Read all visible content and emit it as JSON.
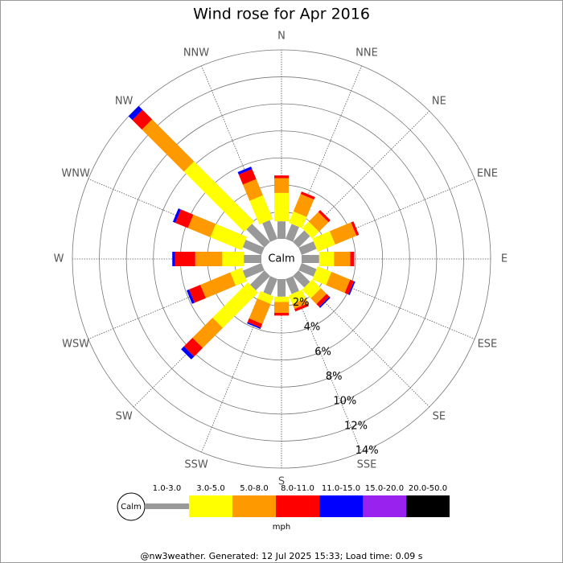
{
  "chart_data": {
    "type": "windrose",
    "title": "Wind rose for Apr 2016",
    "categories": [
      "N",
      "NNE",
      "NE",
      "ENE",
      "E",
      "ESE",
      "SE",
      "SSE",
      "S",
      "SSW",
      "SW",
      "WSW",
      "W",
      "WNW",
      "NW",
      "NNW"
    ],
    "center_label": "Calm",
    "rlim": [
      0,
      14
    ],
    "rticks": [
      {
        "value": 2,
        "label": "2%"
      },
      {
        "value": 4,
        "label": "4%"
      },
      {
        "value": 6,
        "label": "6%"
      },
      {
        "value": 8,
        "label": "8%"
      },
      {
        "value": 10,
        "label": "10%"
      },
      {
        "value": 12,
        "label": "12%"
      },
      {
        "value": 14,
        "label": "14%"
      }
    ],
    "series": [
      {
        "name": "1.0-3.0",
        "color": "#999999",
        "values": [
          1.3,
          1.2,
          1.2,
          1.2,
          1.3,
          1.2,
          1.2,
          1.2,
          1.3,
          1.3,
          1.5,
          1.5,
          1.3,
          1.5,
          1.9,
          1.5
        ]
      },
      {
        "name": "3.0-5.0",
        "color": "#ffff00",
        "values": [
          2.1,
          0.9,
          0.7,
          1.4,
          1.1,
          1.1,
          0.9,
          0.7,
          0.4,
          0.6,
          3.7,
          0.9,
          1.6,
          2.5,
          6.3,
          1.9
        ]
      },
      {
        "name": "5.0-8.0",
        "color": "#ff9900",
        "values": [
          1.1,
          1.4,
          1.0,
          1.7,
          1.2,
          1.5,
          0.6,
          0.4,
          0.8,
          1.6,
          2.1,
          2.4,
          2.0,
          1.8,
          4.4,
          1.3
        ]
      },
      {
        "name": "8.0-11.0",
        "color": "#ff0000",
        "values": [
          0.2,
          0.2,
          0.2,
          0.2,
          0.3,
          0.3,
          0.3,
          0.2,
          0.2,
          0.3,
          0.9,
          0.9,
          1.5,
          1.0,
          1.0,
          0.8
        ]
      },
      {
        "name": "11.0-15.0",
        "color": "#0000ff",
        "values": [
          0,
          0,
          0,
          0,
          0,
          0.1,
          0.1,
          0,
          0,
          0.1,
          0.3,
          0.2,
          0.2,
          0.2,
          0.4,
          0.2
        ]
      },
      {
        "name": "15.0-20.0",
        "color": "#9922ee",
        "values": [
          0,
          0,
          0,
          0,
          0,
          0,
          0,
          0,
          0,
          0,
          0,
          0,
          0,
          0,
          0,
          0
        ]
      },
      {
        "name": "20.0-50.0",
        "color": "#000000",
        "values": [
          0,
          0,
          0,
          0,
          0,
          0,
          0,
          0,
          0,
          0,
          0,
          0,
          0,
          0,
          0,
          0
        ]
      }
    ],
    "units": "mph"
  },
  "footer": "@nw3weather. Generated: 12 Jul 2025 15:33; Load time: 0.09 s"
}
